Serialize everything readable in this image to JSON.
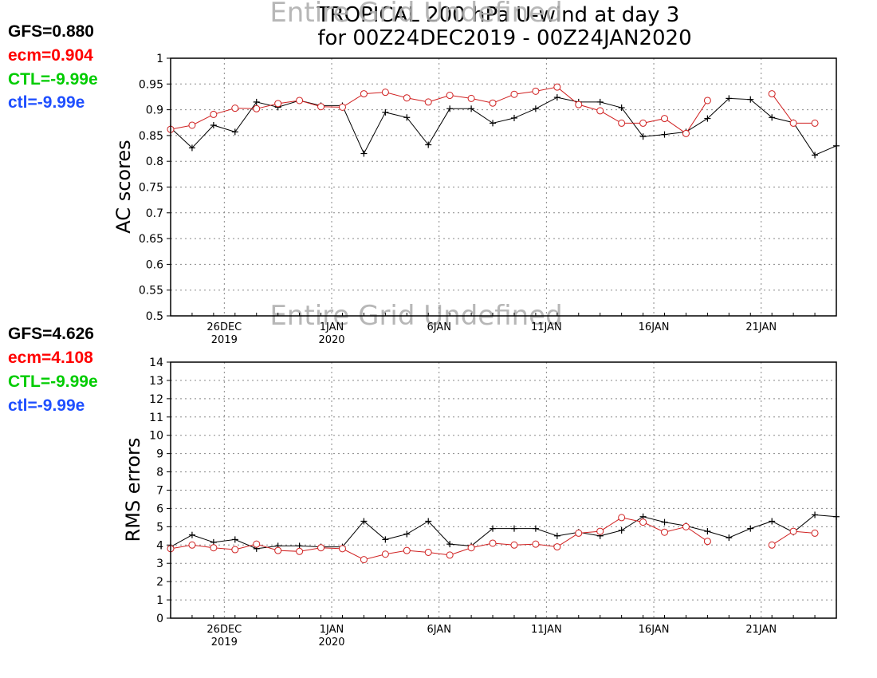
{
  "title": {
    "line1": "TROPICAL 200 hPa U-wind at day 3",
    "line2": "for 00Z24DEC2019 - 00Z24JAN2020"
  },
  "colors": {
    "gfs": "#000000",
    "ecm": "#ff0000",
    "ecm_line": "#d02020",
    "ctl_upper": "#00cc00",
    "ctl_lower": "#1f4fff",
    "undefined_text": "#b0b0b0",
    "grid": "#888888"
  },
  "ac_panel": {
    "undefined_text": "Entire Grid Undefined",
    "legend": [
      {
        "label": "GFS=0.880",
        "color": "#000000"
      },
      {
        "label": "ecm=0.904",
        "color": "#ff0000"
      },
      {
        "label": "CTL=-9.99e",
        "color": "#00cc00"
      },
      {
        "label": "ctl=-9.99e",
        "color": "#1f4fff"
      }
    ]
  },
  "rms_panel": {
    "undefined_text": "Entire Grid Undefined",
    "legend": [
      {
        "label": "GFS=4.626",
        "color": "#000000"
      },
      {
        "label": "ecm=4.108",
        "color": "#ff0000"
      },
      {
        "label": "CTL=-9.99e",
        "color": "#00cc00"
      },
      {
        "label": "ctl=-9.99e",
        "color": "#1f4fff"
      }
    ]
  },
  "chart_data": [
    {
      "type": "line",
      "ylabel": "AC scores",
      "ylim": [
        0.5,
        1
      ],
      "yticks": [
        0.5,
        0.55,
        0.6,
        0.65,
        0.7,
        0.75,
        0.8,
        0.85,
        0.9,
        0.95,
        1
      ],
      "xticks": [
        {
          "x": 2.5,
          "label": "26DEC",
          "sublabel": "2019"
        },
        {
          "x": 7.5,
          "label": "1JAN",
          "sublabel": "2020"
        },
        {
          "x": 12.5,
          "label": "6JAN",
          "sublabel": ""
        },
        {
          "x": 17.5,
          "label": "11JAN",
          "sublabel": ""
        },
        {
          "x": 22.5,
          "label": "16JAN",
          "sublabel": ""
        },
        {
          "x": 27.5,
          "label": "21JAN",
          "sublabel": ""
        }
      ],
      "xlim": [
        0,
        31
      ],
      "grid": true,
      "series": [
        {
          "name": "GFS",
          "marker": "plus",
          "x": [
            0,
            1,
            2,
            3,
            4,
            5,
            6,
            7,
            8,
            9,
            10,
            11,
            12,
            13,
            14,
            15,
            16,
            17,
            18,
            19,
            20,
            21,
            22,
            23,
            24,
            25,
            26,
            27,
            28,
            29,
            30,
            31
          ],
          "values": [
            0.865,
            0.826,
            0.87,
            0.857,
            0.915,
            0.905,
            0.918,
            0.908,
            0.908,
            0.815,
            0.895,
            0.885,
            0.832,
            0.902,
            0.902,
            0.874,
            0.884,
            0.902,
            0.924,
            0.915,
            0.915,
            0.904,
            0.848,
            0.852,
            0.857,
            0.883,
            0.922,
            0.92,
            0.885,
            0.875,
            0.812,
            0.83
          ]
        },
        {
          "name": "ecm",
          "marker": "circle",
          "x": [
            0,
            1,
            2,
            3,
            4,
            5,
            6,
            7,
            8,
            9,
            10,
            11,
            12,
            13,
            14,
            15,
            16,
            17,
            18,
            19,
            20,
            21,
            22,
            23,
            24,
            25,
            26,
            27,
            28,
            29,
            30
          ],
          "values": [
            0.862,
            0.87,
            0.891,
            0.903,
            0.902,
            0.912,
            0.918,
            0.906,
            0.905,
            0.931,
            0.934,
            0.923,
            0.915,
            0.928,
            0.922,
            0.913,
            0.93,
            0.936,
            0.944,
            0.91,
            0.898,
            0.874,
            0.874,
            0.883,
            0.854,
            0.918,
            null,
            null,
            0.931,
            0.874,
            0.874
          ]
        }
      ]
    },
    {
      "type": "line",
      "ylabel": "RMS errors",
      "ylim": [
        0,
        14
      ],
      "yticks": [
        0,
        1,
        2,
        3,
        4,
        5,
        6,
        7,
        8,
        9,
        10,
        11,
        12,
        13,
        14
      ],
      "xticks": [
        {
          "x": 2.5,
          "label": "26DEC",
          "sublabel": "2019"
        },
        {
          "x": 7.5,
          "label": "1JAN",
          "sublabel": "2020"
        },
        {
          "x": 12.5,
          "label": "6JAN",
          "sublabel": ""
        },
        {
          "x": 17.5,
          "label": "11JAN",
          "sublabel": ""
        },
        {
          "x": 22.5,
          "label": "16JAN",
          "sublabel": ""
        },
        {
          "x": 27.5,
          "label": "21JAN",
          "sublabel": ""
        }
      ],
      "xlim": [
        0,
        31
      ],
      "grid": true,
      "series": [
        {
          "name": "GFS",
          "marker": "plus",
          "x": [
            0,
            1,
            2,
            3,
            4,
            5,
            6,
            7,
            8,
            9,
            10,
            11,
            12,
            13,
            14,
            15,
            16,
            17,
            18,
            19,
            20,
            21,
            22,
            23,
            24,
            25,
            26,
            27,
            28,
            29,
            30,
            31
          ],
          "values": [
            3.9,
            4.55,
            4.15,
            4.3,
            3.8,
            3.95,
            3.95,
            3.9,
            3.9,
            5.3,
            4.3,
            4.6,
            5.3,
            4.05,
            3.95,
            4.9,
            4.9,
            4.9,
            4.5,
            4.7,
            4.5,
            4.8,
            5.55,
            5.25,
            5.05,
            4.75,
            4.4,
            4.9,
            5.3,
            4.7,
            5.65,
            5.55
          ]
        },
        {
          "name": "ecm",
          "marker": "circle",
          "x": [
            0,
            1,
            2,
            3,
            4,
            5,
            6,
            7,
            8,
            9,
            10,
            11,
            12,
            13,
            14,
            15,
            16,
            17,
            18,
            19,
            20,
            21,
            22,
            23,
            24,
            25,
            26,
            27,
            28,
            29,
            30
          ],
          "values": [
            3.8,
            4.0,
            3.85,
            3.75,
            4.05,
            3.7,
            3.65,
            3.85,
            3.8,
            3.2,
            3.5,
            3.7,
            3.6,
            3.45,
            3.85,
            4.1,
            4.0,
            4.05,
            3.9,
            4.65,
            4.75,
            5.5,
            5.25,
            4.7,
            5.0,
            4.2,
            null,
            null,
            4.0,
            4.75,
            4.65
          ]
        }
      ]
    }
  ]
}
